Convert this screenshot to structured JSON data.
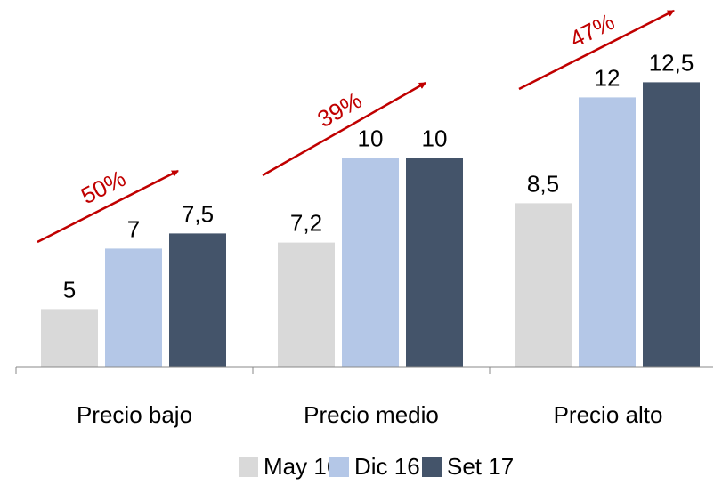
{
  "chart_data": {
    "type": "bar",
    "categories": [
      "Precio bajo",
      "Precio medio",
      "Precio alto"
    ],
    "series": [
      {
        "name": "May 16",
        "color": "#d9d9d9",
        "values": [
          5,
          7.2,
          8.5
        ],
        "value_labels": [
          "5",
          "7,2",
          "8,5"
        ]
      },
      {
        "name": "Dic 16",
        "color": "#b4c7e7",
        "values": [
          7,
          10,
          12
        ],
        "value_labels": [
          "7",
          "10",
          "12"
        ]
      },
      {
        "name": "Set 17",
        "color": "#44546a",
        "values": [
          7.5,
          10,
          12.5
        ],
        "value_labels": [
          "7,5",
          "10",
          "12,5"
        ]
      }
    ],
    "annotations": [
      "50%",
      "39%",
      "47%"
    ],
    "annotation_color": "#c00000",
    "ylim": [
      3.1,
      13.5
    ]
  }
}
